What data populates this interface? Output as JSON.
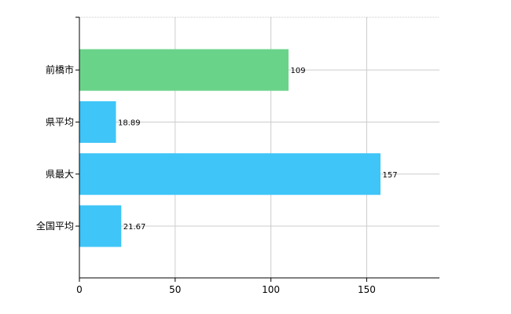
{
  "chart_data": {
    "type": "bar",
    "orientation": "horizontal",
    "categories": [
      "前橋市",
      "県平均",
      "県最大",
      "全国平均"
    ],
    "values": [
      109,
      18.89,
      157,
      21.67
    ],
    "value_labels": [
      "109",
      "18.89",
      "157",
      "21.67"
    ],
    "bar_colors": [
      "#6ad38a",
      "#3fc5f7",
      "#3fc5f7",
      "#3fc5f7"
    ],
    "xlim": [
      0,
      188
    ],
    "x_ticks": [
      0,
      50,
      100,
      150
    ],
    "x_tick_labels": [
      "0",
      "50",
      "100",
      "150"
    ],
    "grid": true,
    "title": "",
    "xlabel": "",
    "ylabel": ""
  }
}
